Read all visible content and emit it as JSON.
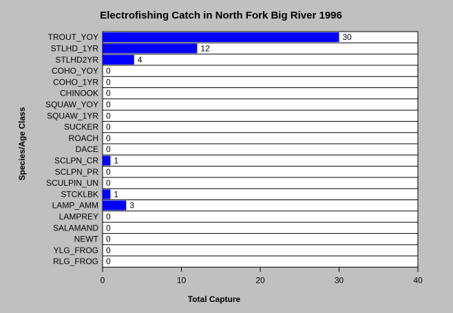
{
  "chart_data": {
    "type": "bar",
    "orientation": "horizontal",
    "title": "Electrofishing Catch in North Fork Big River 1996",
    "xlabel": "Total Capture",
    "ylabel": "Species/Age Class",
    "categories": [
      "TROUT_YOY",
      "STLHD_1YR",
      "STLHD2YR",
      "COHO_YOY",
      "COHO_1YR",
      "CHINOOK",
      "SQUAW_YOY",
      "SQUAW_1YR",
      "SUCKER",
      "ROACH",
      "DACE",
      "SCLPN_CR",
      "SCLPN_PR",
      "SCULPIN_UN",
      "STCKLBK",
      "LAMP_AMM",
      "LAMPREY",
      "SALAMAND",
      "NEWT",
      "YLG_FROG",
      "RLG_FROG"
    ],
    "values": [
      30,
      12,
      4,
      0,
      0,
      0,
      0,
      0,
      0,
      0,
      0,
      1,
      0,
      0,
      1,
      3,
      0,
      0,
      0,
      0,
      0
    ],
    "xlim": [
      0,
      40
    ],
    "xticks": [
      0,
      10,
      20,
      30,
      40
    ],
    "grid": "horizontal",
    "bar_color": "#0000ff",
    "background_color": "#c0c0c0",
    "plot_background_color": "#ffffff"
  }
}
